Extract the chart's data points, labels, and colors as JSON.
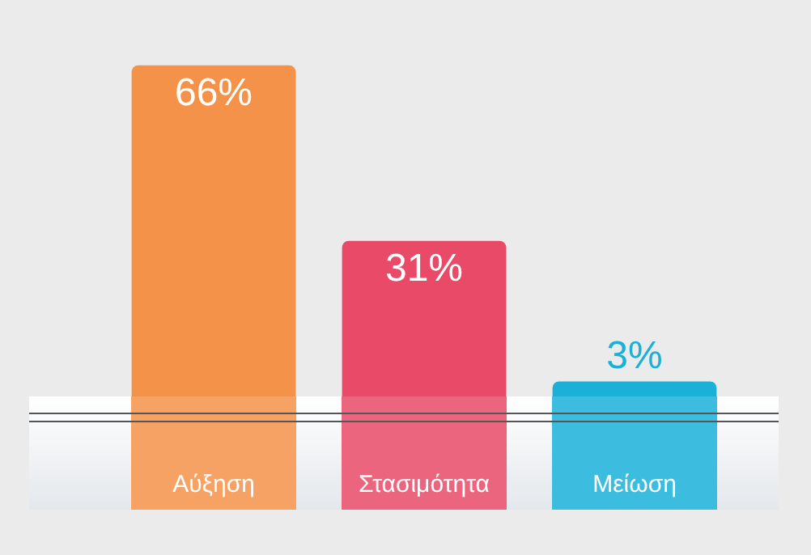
{
  "chart_data": {
    "type": "bar",
    "categories": [
      "Αύξηση",
      "Στασιμότητα",
      "Μείωση"
    ],
    "values": [
      66,
      31,
      3
    ],
    "colors": [
      "#f5924a",
      "#e84a67",
      "#1ab0d8"
    ],
    "value_labels": [
      "66%",
      "31%",
      "3%"
    ],
    "grid": false,
    "legend": false
  }
}
